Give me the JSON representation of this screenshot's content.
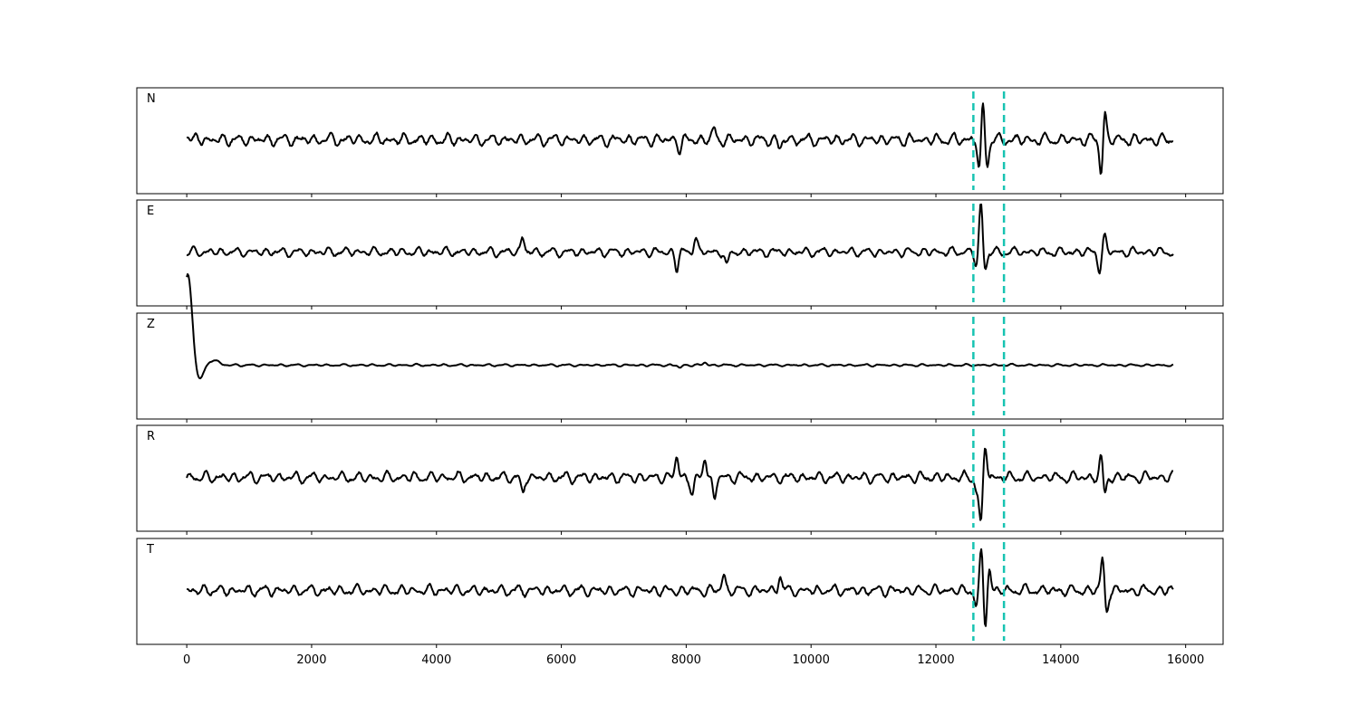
{
  "chart_data": {
    "type": "line",
    "title": "",
    "xlabel": "",
    "ylabel": "",
    "xlim": [
      -800,
      16600
    ],
    "xticks": [
      0,
      2000,
      4000,
      6000,
      8000,
      10000,
      12000,
      14000,
      16000
    ],
    "xtick_labels": [
      "0",
      "2000",
      "4000",
      "6000",
      "8000",
      "10000",
      "12000",
      "14000",
      "16000"
    ],
    "x_range_samples": [
      0,
      15800
    ],
    "grid": false,
    "legend": "none",
    "shared_x_axis": true,
    "pick_lines": {
      "color": "#17c3b2",
      "style": "dashed",
      "x": [
        12600,
        13090
      ]
    },
    "series": [
      {
        "name": "N",
        "baseline": 0,
        "ylim": [
          -1,
          1
        ],
        "noise_amplitude": 0.13,
        "events": [
          {
            "x": 20,
            "value": 0.12
          },
          {
            "x": 7900,
            "value": -0.2
          },
          {
            "x": 8450,
            "value": 0.22
          },
          {
            "x": 9500,
            "value": -0.2
          },
          {
            "x": 12700,
            "value": -0.75
          },
          {
            "x": 12750,
            "value": 0.88
          },
          {
            "x": 12820,
            "value": -0.55
          },
          {
            "x": 14650,
            "value": -0.78
          },
          {
            "x": 14700,
            "value": 0.68
          }
        ]
      },
      {
        "name": "E",
        "baseline": 0,
        "ylim": [
          -1,
          1
        ],
        "noise_amplitude": 0.1,
        "events": [
          {
            "x": 5380,
            "value": 0.32
          },
          {
            "x": 7850,
            "value": -0.35
          },
          {
            "x": 8150,
            "value": 0.33
          },
          {
            "x": 8650,
            "value": -0.33
          },
          {
            "x": 12650,
            "value": -0.3
          },
          {
            "x": 12720,
            "value": 1.05
          },
          {
            "x": 12790,
            "value": -0.4
          },
          {
            "x": 14620,
            "value": -0.38
          },
          {
            "x": 14700,
            "value": 0.32
          }
        ]
      },
      {
        "name": "Z",
        "baseline": 0,
        "ylim": [
          -1,
          1
        ],
        "noise_amplitude": 0.025,
        "events": [
          {
            "x": 0,
            "value": 1.38
          },
          {
            "x": 50,
            "value": 0.72
          },
          {
            "x": 200,
            "value": -0.3
          },
          {
            "x": 450,
            "value": 0.12
          },
          {
            "x": 7900,
            "value": -0.06
          },
          {
            "x": 8300,
            "value": 0.06
          }
        ]
      },
      {
        "name": "R",
        "baseline": 0,
        "ylim": [
          -1,
          1
        ],
        "noise_amplitude": 0.12,
        "events": [
          {
            "x": 5380,
            "value": -0.36
          },
          {
            "x": 7850,
            "value": 0.45
          },
          {
            "x": 8100,
            "value": -0.4
          },
          {
            "x": 8300,
            "value": 0.45
          },
          {
            "x": 8450,
            "value": -0.47
          },
          {
            "x": 12650,
            "value": -0.25
          },
          {
            "x": 12720,
            "value": -1.02
          },
          {
            "x": 12790,
            "value": 0.7
          },
          {
            "x": 14650,
            "value": 0.45
          },
          {
            "x": 14700,
            "value": -0.4
          }
        ]
      },
      {
        "name": "T",
        "baseline": 0,
        "ylim": [
          -1,
          1
        ],
        "noise_amplitude": 0.12,
        "events": [
          {
            "x": 8600,
            "value": 0.33
          },
          {
            "x": 9500,
            "value": 0.32
          },
          {
            "x": 12650,
            "value": -0.35
          },
          {
            "x": 12730,
            "value": 0.88
          },
          {
            "x": 12790,
            "value": -0.82
          },
          {
            "x": 12850,
            "value": 0.5
          },
          {
            "x": 14670,
            "value": 0.72
          },
          {
            "x": 14730,
            "value": -0.5
          }
        ]
      }
    ]
  }
}
